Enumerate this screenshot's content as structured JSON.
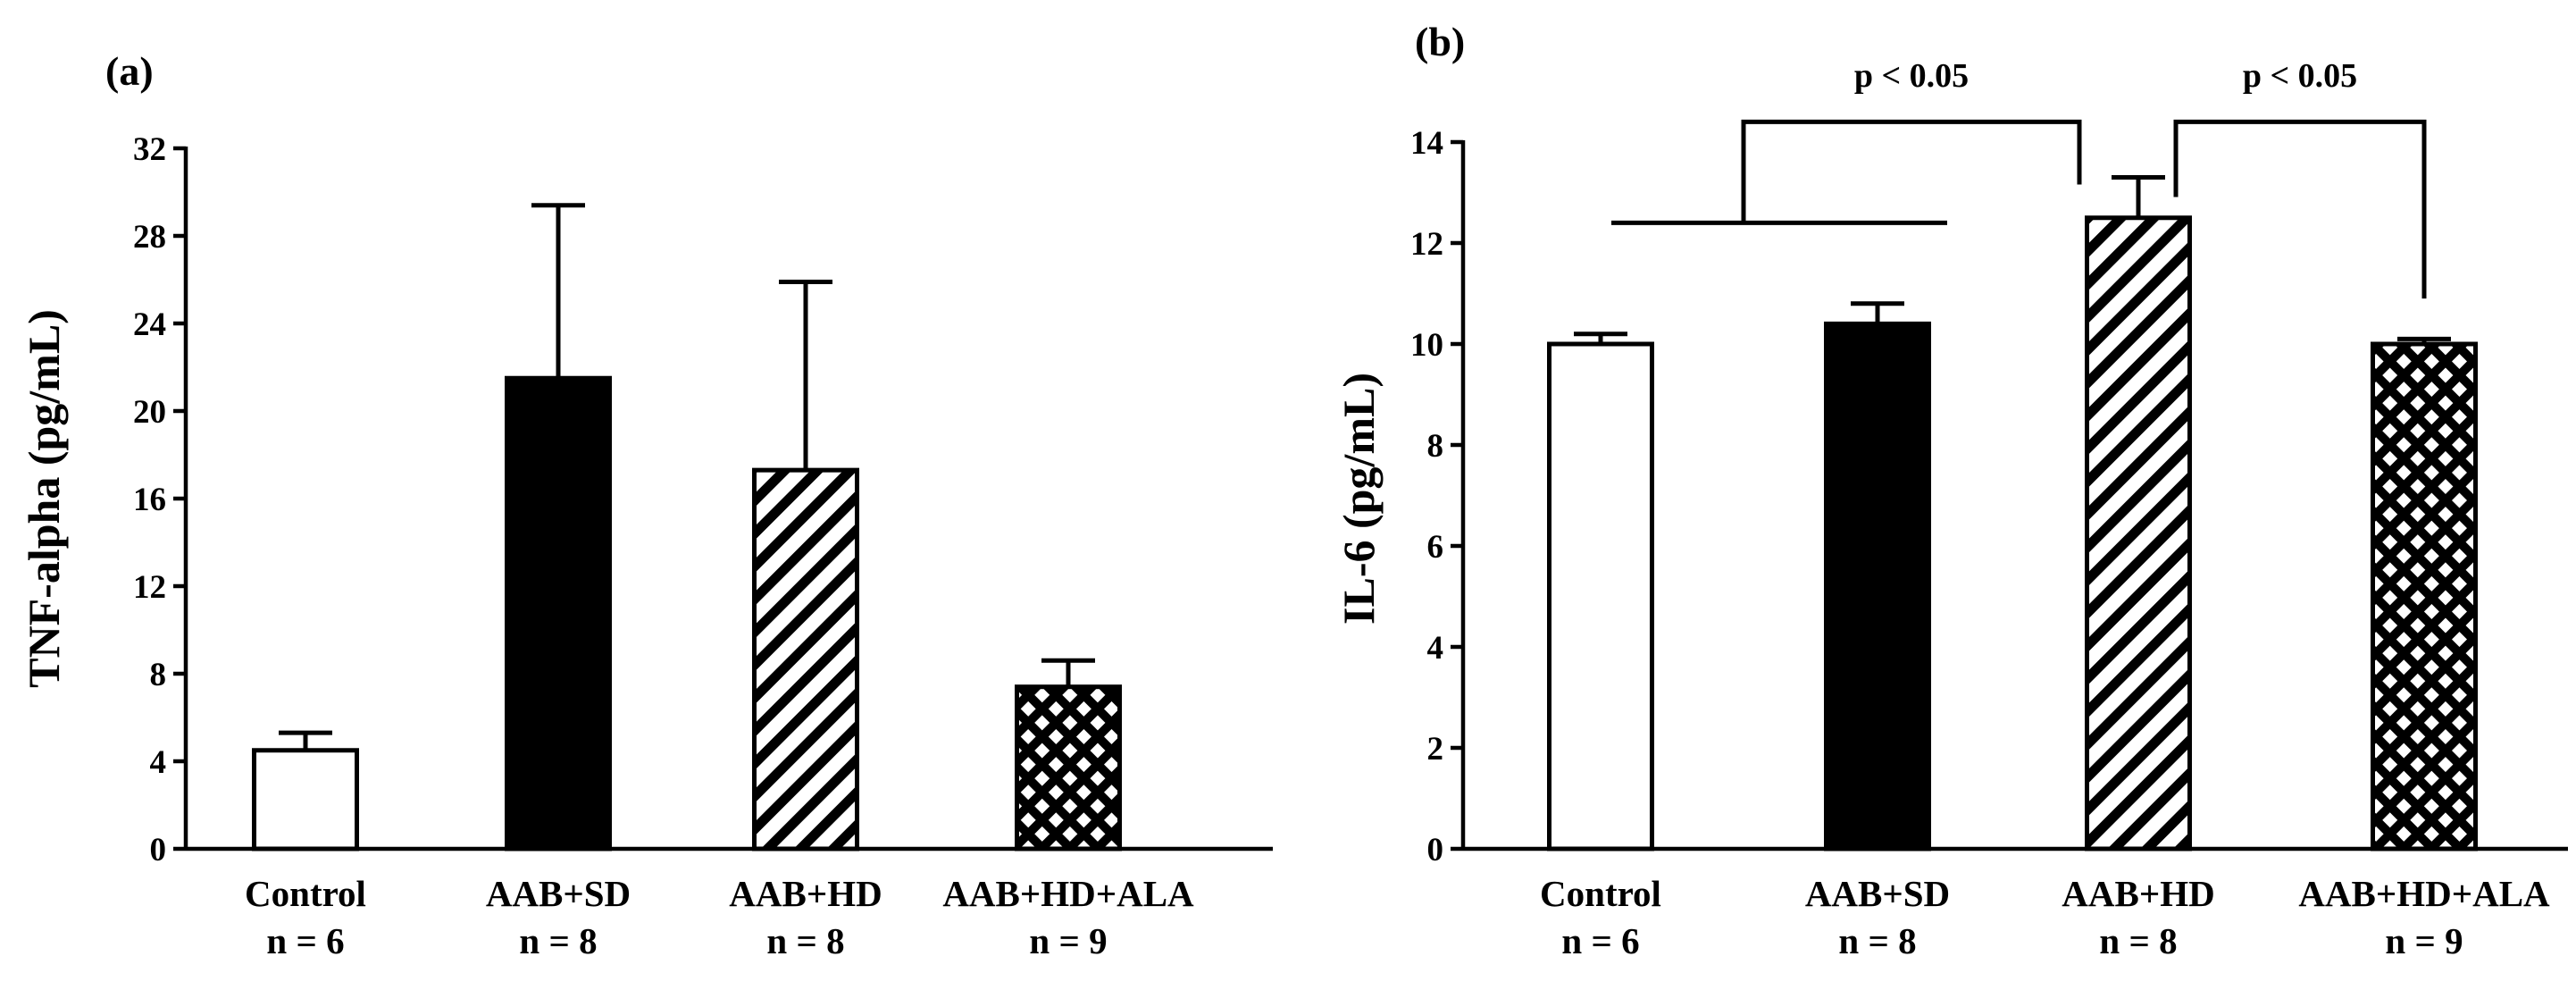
{
  "chart_data": [
    {
      "panel_label": "(a)",
      "type": "bar",
      "ylabel": "TNF-alpha (pg/mL)",
      "xlabel": "",
      "ylim": [
        0,
        32
      ],
      "yticks": [
        "0",
        "4",
        "8",
        "12",
        "16",
        "20",
        "24",
        "28",
        "32"
      ],
      "categories": [
        "Control",
        "AAB+SD",
        "AAB+HD",
        "AAB+HD+ALA"
      ],
      "n_labels": [
        "n = 6",
        "n = 8",
        "n = 8",
        "n = 9"
      ],
      "values": [
        4.5,
        21.5,
        17.3,
        7.4
      ],
      "errors": [
        0.8,
        7.9,
        8.6,
        1.2
      ],
      "fills": [
        "white",
        "black",
        "diagonal-hatch",
        "crosshatch"
      ],
      "annotations": []
    },
    {
      "panel_label": "(b)",
      "type": "bar",
      "ylabel": "IL-6 (pg/mL)",
      "xlabel": "",
      "ylim": [
        0,
        14
      ],
      "yticks": [
        "0",
        "2",
        "4",
        "6",
        "8",
        "10",
        "12",
        "14"
      ],
      "categories": [
        "Control",
        "AAB+SD",
        "AAB+HD",
        "AAB+HD+ALA"
      ],
      "n_labels": [
        "n = 6",
        "n = 8",
        "n = 8",
        "n = 9"
      ],
      "values": [
        10.0,
        10.4,
        12.5,
        10.0
      ],
      "errors": [
        0.2,
        0.4,
        0.8,
        0.1
      ],
      "fills": [
        "white",
        "black",
        "diagonal-hatch",
        "crosshatch"
      ],
      "annotations": [
        {
          "text": "p < 0.05",
          "compares": [
            "Control + AAB+SD",
            "AAB+HD"
          ]
        },
        {
          "text": "p < 0.05",
          "compares": [
            "AAB+HD",
            "AAB+HD+ALA"
          ]
        }
      ]
    }
  ]
}
